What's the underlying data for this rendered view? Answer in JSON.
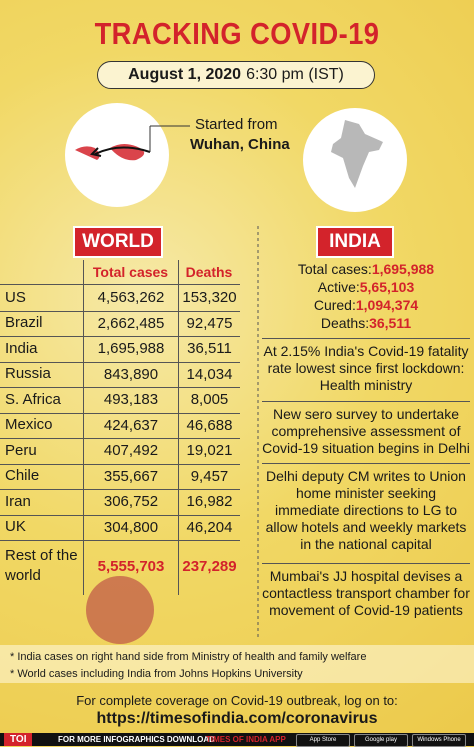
{
  "header": {
    "title": "TRACKING COVID-19",
    "date": "August 1, 2020",
    "time": "6:30 pm (IST)"
  },
  "origin": {
    "label": "Started from",
    "place": "Wuhan, China"
  },
  "world": {
    "title": "WORLD",
    "columns": [
      "Total cases",
      "Deaths"
    ],
    "rows": [
      [
        "US",
        "4,563,262",
        "153,320"
      ],
      [
        "Brazil",
        "2,662,485",
        "92,475"
      ],
      [
        "India",
        "1,695,988",
        "36,511"
      ],
      [
        "Russia",
        "843,890",
        "14,034"
      ],
      [
        "S. Africa",
        "493,183",
        "8,005"
      ],
      [
        "Mexico",
        "424,637",
        "46,688"
      ],
      [
        "Peru",
        "407,492",
        "19,021"
      ],
      [
        "Chile",
        "355,667",
        "9,457"
      ],
      [
        "Iran",
        "306,752",
        "16,982"
      ],
      [
        "UK",
        "304,800",
        "46,204"
      ],
      [
        "Rest of the world",
        "5,555,703",
        "237,289"
      ]
    ]
  },
  "india": {
    "title": "INDIA",
    "stats": [
      {
        "label": "Total cases:",
        "value": "1,695,988"
      },
      {
        "label": "Active:",
        "value": "5,65,103"
      },
      {
        "label": "Cured:",
        "value": "1,094,374"
      },
      {
        "label": "Deaths:",
        "value": "36,511"
      }
    ],
    "news": [
      "At 2.15% India's Covid-19 fatality rate lowest since first lockdown: Health ministry",
      "New sero survey to undertake comprehensive assessment of Covid-19 situation begins in Delhi",
      "Delhi deputy CM writes to Union home minister seeking immediate directions to LG to allow hotels and weekly markets in the national capital",
      "Mumbai's JJ hospital devises a contactless transport chamber for movement of Covid-19 patients"
    ]
  },
  "notes": [
    "* India cases on right hand side from Ministry of health and family welfare",
    "* World cases including India from Johns Hopkins University"
  ],
  "footer": {
    "text": "For complete coverage on Covid-19 outbreak, log on to:",
    "url": "https://timesofindia.com/coronavirus"
  },
  "bottom_bar": {
    "brand": "TOI",
    "text": "FOR MORE INFOGRAPHICS DOWNLOAD",
    "app": "TIMES OF INDIA APP",
    "stores": [
      "App Store",
      "Google play",
      "Windows Phone"
    ]
  }
}
